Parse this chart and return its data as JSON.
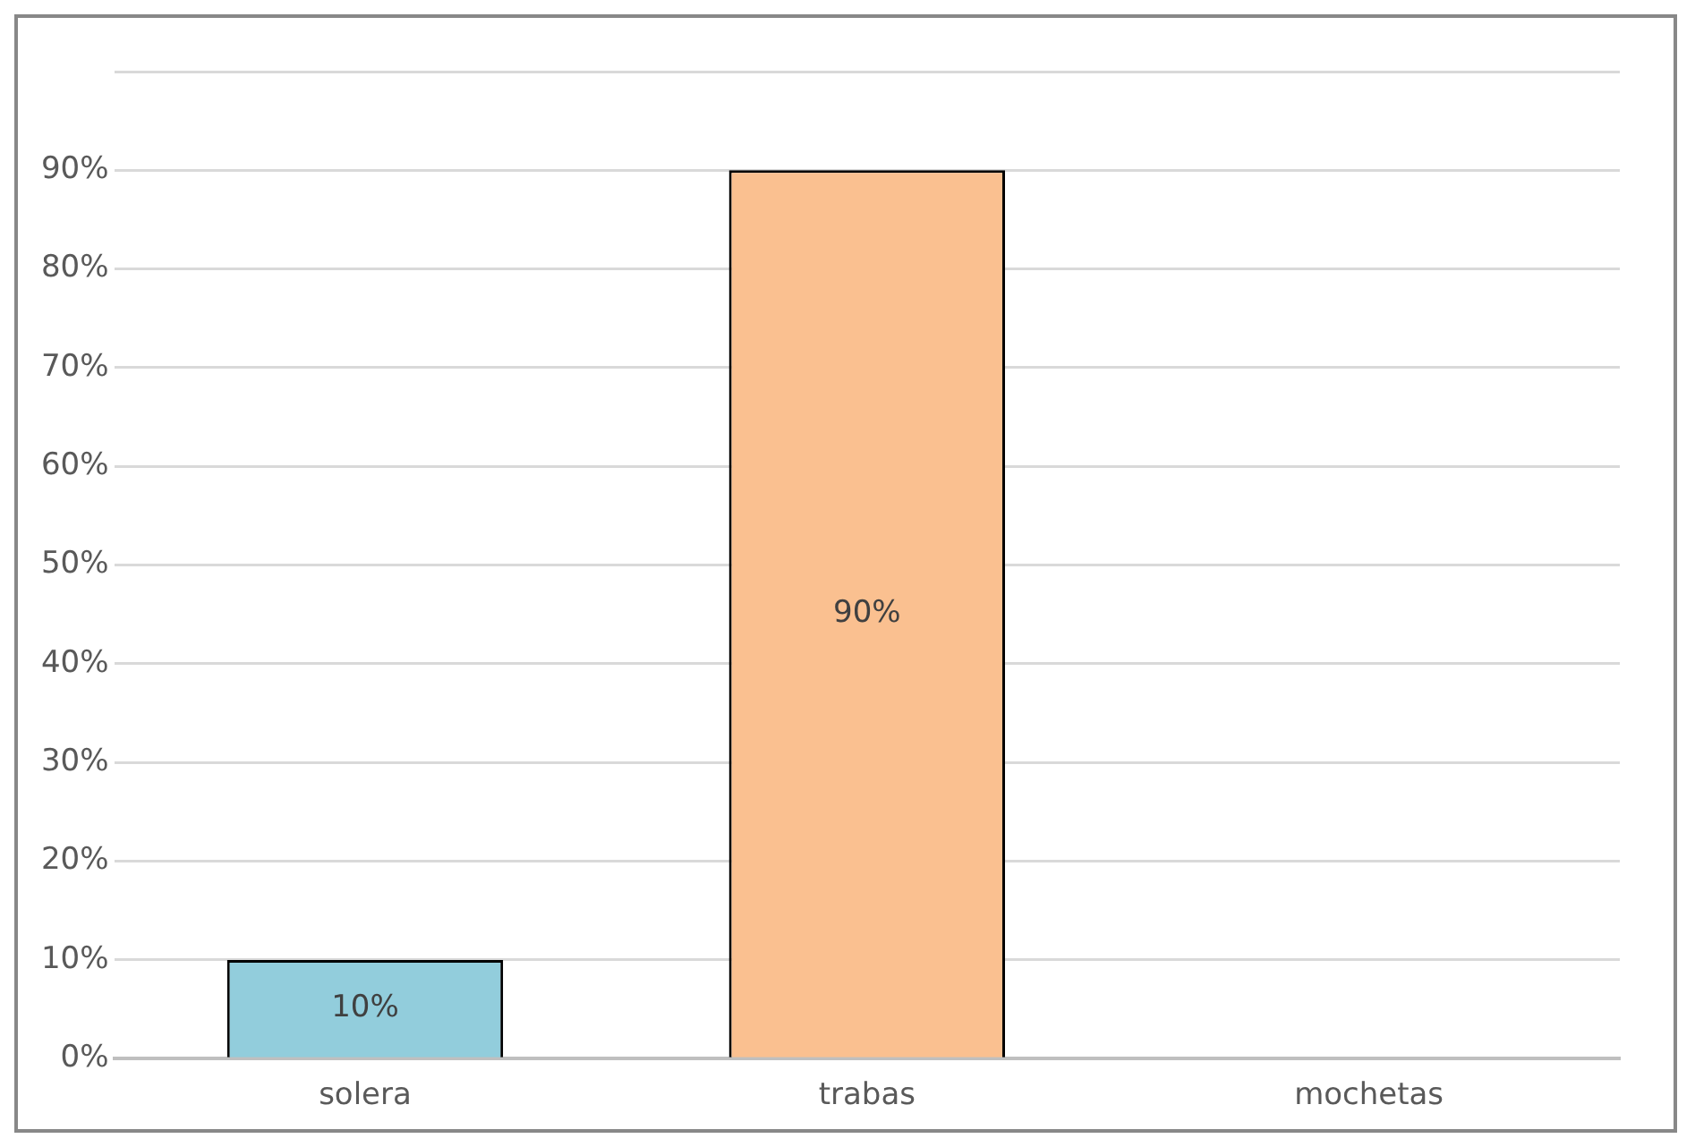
{
  "chart_data": {
    "type": "bar",
    "categories": [
      "solera",
      "trabas",
      "mochetas"
    ],
    "values": [
      10,
      90,
      0
    ],
    "colors": [
      "#92cddc",
      "#fac090",
      "#b7dee8"
    ],
    "value_labels": [
      "10%",
      "90%",
      null
    ],
    "ylim": [
      0,
      100
    ],
    "yticks": [
      {
        "value": 0,
        "label": "0%"
      },
      {
        "value": 10,
        "label": "10%"
      },
      {
        "value": 20,
        "label": "20%"
      },
      {
        "value": 30,
        "label": "30%"
      },
      {
        "value": 40,
        "label": "40%"
      },
      {
        "value": 50,
        "label": "50%"
      },
      {
        "value": 60,
        "label": "60%"
      },
      {
        "value": 70,
        "label": "70%"
      },
      {
        "value": 80,
        "label": "80%"
      },
      {
        "value": 90,
        "label": "90%"
      },
      {
        "value": 100,
        "label": null
      }
    ],
    "grid": "y",
    "legend": false
  }
}
